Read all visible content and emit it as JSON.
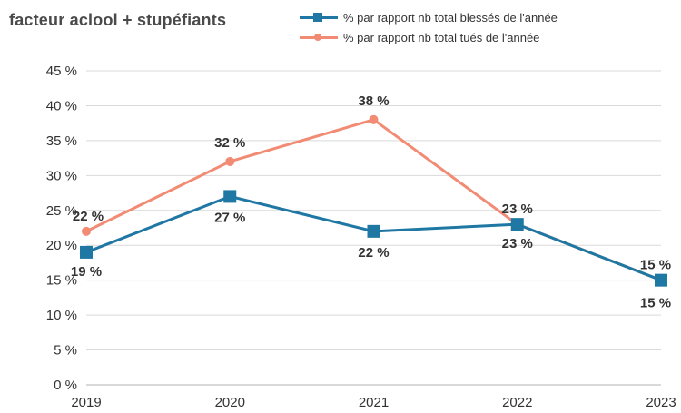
{
  "chart_data": {
    "type": "line",
    "title": "facteur aclool + stupéfiants",
    "categories": [
      "2019",
      "2020",
      "2021",
      "2022",
      "2023"
    ],
    "yticks": [
      "0 %",
      "5 %",
      "10 %",
      "15 %",
      "20 %",
      "25 %",
      "30 %",
      "35 %",
      "40 %",
      "45 %"
    ],
    "ylim": [
      0,
      45
    ],
    "grid": true,
    "legend_position": "top-right",
    "series": [
      {
        "name": "% par rapport nb total blessés de l'année",
        "color": "#1f77a4",
        "marker": "square",
        "values": [
          19,
          27,
          22,
          23,
          15
        ],
        "labels": [
          "19 %",
          "27 %",
          "22 %",
          "23 %",
          "15 %"
        ]
      },
      {
        "name": "% par rapport nb total tués de l'année",
        "color": "#f28b74",
        "marker": "circle",
        "values": [
          22,
          32,
          38,
          23,
          15
        ],
        "labels": [
          "22 %",
          "32 %",
          "38 %",
          "23 %",
          "15 %"
        ]
      }
    ]
  }
}
